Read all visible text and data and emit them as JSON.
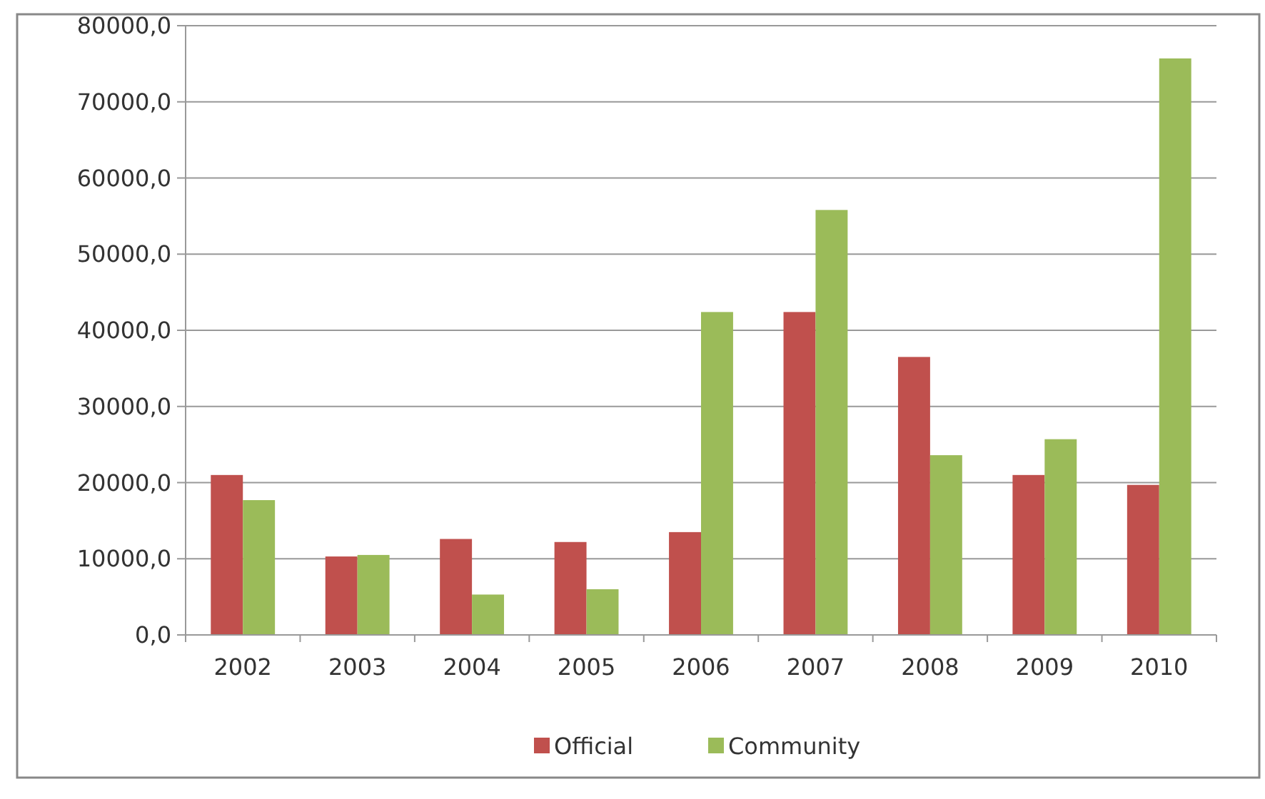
{
  "chart_data": {
    "type": "bar",
    "categories": [
      "2002",
      "2003",
      "2004",
      "2005",
      "2006",
      "2007",
      "2008",
      "2009",
      "2010"
    ],
    "series": [
      {
        "name": "Official",
        "color": "#c0504d",
        "values": [
          21000,
          10300,
          12600,
          12200,
          13500,
          42400,
          36500,
          21000,
          19700
        ]
      },
      {
        "name": "Community",
        "color": "#9bbb59",
        "values": [
          17700,
          10500,
          5300,
          6000,
          42400,
          55800,
          23600,
          25700,
          75700
        ]
      }
    ],
    "ylim": [
      0,
      80000
    ],
    "yticks": [
      {
        "value": 0,
        "label": "0,0"
      },
      {
        "value": 10000,
        "label": "10000,0"
      },
      {
        "value": 20000,
        "label": "20000,0"
      },
      {
        "value": 30000,
        "label": "30000,0"
      },
      {
        "value": 40000,
        "label": "40000,0"
      },
      {
        "value": 50000,
        "label": "50000,0"
      },
      {
        "value": 60000,
        "label": "60000,0"
      },
      {
        "value": 70000,
        "label": "70000,0"
      },
      {
        "value": 80000,
        "label": "80000,0"
      }
    ],
    "grid": "y",
    "legend": "bottom"
  }
}
